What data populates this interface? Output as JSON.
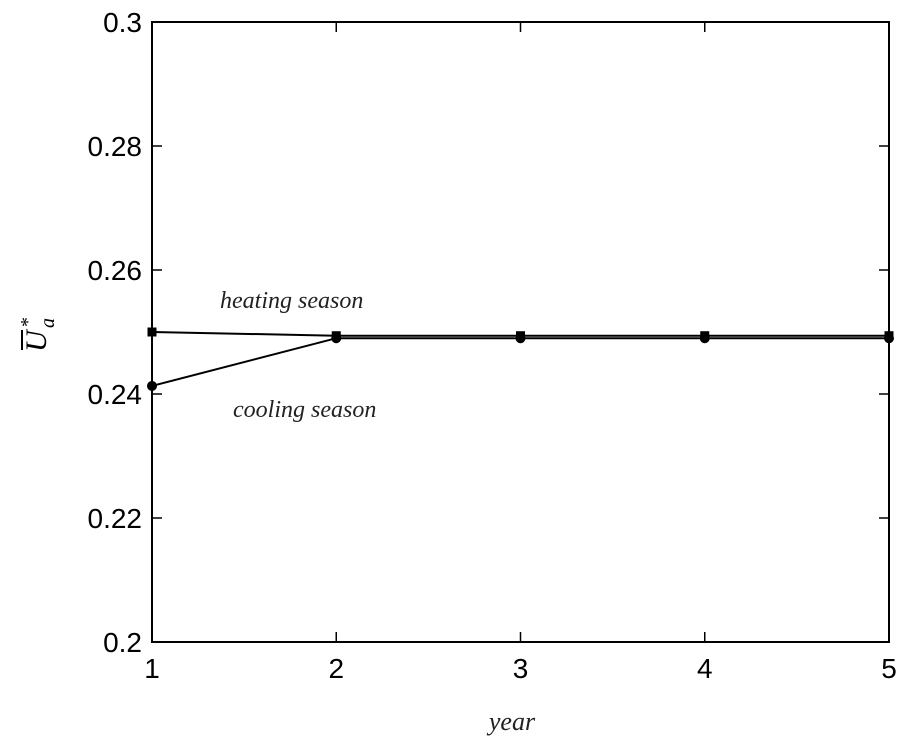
{
  "chart_data": {
    "type": "line",
    "title": "",
    "xlabel": "year",
    "ylabel": {
      "symbol": "U",
      "subscript": "a",
      "superscript": "*",
      "overline": true
    },
    "x": [
      1,
      2,
      3,
      4,
      5
    ],
    "xlim": [
      1,
      5
    ],
    "ylim": [
      0.2,
      0.3
    ],
    "xticks": [
      1,
      2,
      3,
      4,
      5
    ],
    "xtick_labels": [
      "1",
      "2",
      "3",
      "4",
      "5"
    ],
    "yticks": [
      0.2,
      0.22,
      0.24,
      0.26,
      0.28,
      0.3
    ],
    "ytick_labels": [
      "0.2",
      "0.22",
      "0.24",
      "0.26",
      "0.28",
      "0.3"
    ],
    "grid": false,
    "legend": "none",
    "series": [
      {
        "name": "heating season",
        "values": [
          0.25,
          0.2494,
          0.2494,
          0.2494,
          0.2494
        ],
        "marker": "square",
        "color": "#000000"
      },
      {
        "name": "cooling season",
        "values": [
          0.2413,
          0.249,
          0.249,
          0.249,
          0.249
        ],
        "marker": "circle",
        "color": "#000000"
      }
    ]
  }
}
